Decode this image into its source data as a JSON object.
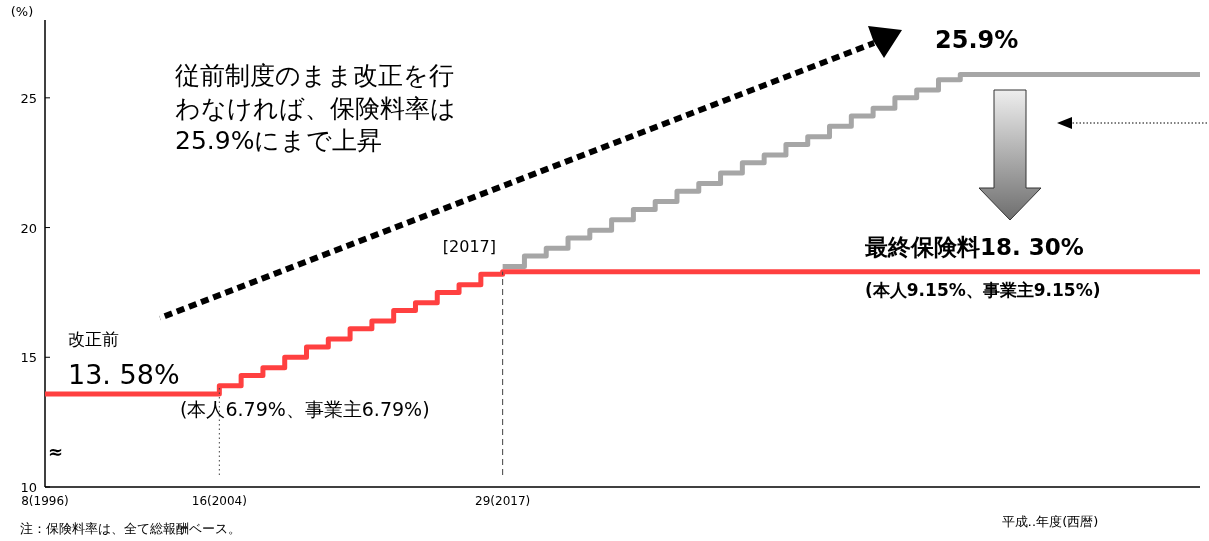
{
  "chart_data": {
    "type": "step",
    "ylabel": "(%)",
    "xlabel": "平成‥年度(西暦)",
    "categories": [
      "8(1996)",
      null,
      null,
      null,
      null,
      null,
      null,
      null,
      "16(2004)",
      null,
      null,
      null,
      null,
      null,
      null,
      null,
      null,
      null,
      null,
      null,
      null,
      "29(2017)",
      null,
      null,
      null,
      null,
      null,
      null,
      null,
      null,
      null,
      null,
      null,
      null,
      null,
      null,
      null,
      null,
      null,
      null,
      null,
      null,
      null,
      null,
      null,
      null,
      null,
      null,
      null,
      null,
      null,
      null,
      null,
      null
    ],
    "series": [
      {
        "color": "#ff4040",
        "values": [
          13.58,
          13.58,
          13.58,
          13.58,
          13.58,
          13.58,
          13.58,
          13.58,
          13.9,
          14.3,
          14.6,
          15.0,
          15.4,
          15.7,
          16.1,
          16.4,
          16.8,
          17.1,
          17.5,
          17.8,
          18.2,
          18.3,
          18.3,
          18.3,
          18.3,
          18.3,
          18.3,
          18.3,
          18.3,
          18.3,
          18.3,
          18.3,
          18.3,
          18.3,
          18.3,
          18.3,
          18.3,
          18.3,
          18.3,
          18.3,
          18.3,
          18.3,
          18.3,
          18.3,
          18.3,
          18.3,
          18.3,
          18.3,
          18.3,
          18.3,
          18.3,
          18.3,
          18.3,
          18.3
        ]
      },
      {
        "color": "#a6a6a6",
        "values": [
          null,
          null,
          null,
          null,
          null,
          null,
          null,
          null,
          null,
          null,
          null,
          null,
          null,
          null,
          null,
          null,
          null,
          null,
          null,
          null,
          null,
          18.5,
          18.9,
          19.2,
          19.6,
          19.9,
          20.3,
          20.7,
          21.0,
          21.4,
          21.7,
          22.1,
          22.5,
          22.8,
          23.2,
          23.5,
          23.9,
          24.3,
          24.6,
          25.0,
          25.3,
          25.7,
          25.9,
          25.9,
          25.9,
          25.9,
          25.9,
          25.9,
          25.9,
          25.9,
          25.9,
          25.9,
          25.9,
          25.9
        ]
      }
    ],
    "ylim": [
      10,
      28
    ],
    "yticks": [
      10,
      15,
      20,
      25
    ],
    "ref_lines": [
      {
        "axis": "x",
        "value": "16(2004)",
        "line_style": "dotted",
        "color": "#404040"
      },
      {
        "axis": "x",
        "value": "29(2017)",
        "line_style": "dashed",
        "color": "#404040"
      }
    ],
    "annotations": [
      "従前制度のまま改正を行わなければ、保険料率は25.9%にまで上昇",
      "25.9%",
      "最終保険料18. 30%",
      "(本人9.15%、事業主9.15%)",
      "改正前",
      "13. 58%",
      "(本人6.79%、事業主6.79%)",
      "[2017]",
      "≈",
      "注：保険料率は、全て総報酬ベース。"
    ],
    "line_style": "solid",
    "grid": false
  }
}
